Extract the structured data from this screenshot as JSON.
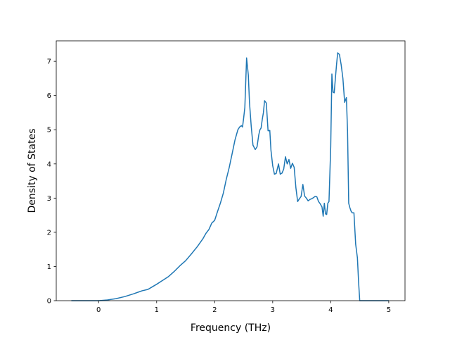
{
  "chart_data": {
    "type": "line",
    "title": "",
    "xlabel": "Frequency (THz)",
    "ylabel": "Density of States",
    "xlim": [
      -0.73,
      5.28
    ],
    "ylim": [
      0,
      7.6
    ],
    "xticks": [
      0,
      1,
      2,
      3,
      4,
      5
    ],
    "yticks": [
      0,
      1,
      2,
      3,
      4,
      5,
      6,
      7
    ],
    "grid": false,
    "legend": "none",
    "series": [
      {
        "color": "#1f77b4",
        "x": [
          -0.47,
          -0.2,
          0.0,
          0.15,
          0.3,
          0.45,
          0.6,
          0.7,
          0.75,
          0.85,
          0.9,
          1.0,
          1.1,
          1.2,
          1.3,
          1.4,
          1.5,
          1.6,
          1.7,
          1.8,
          1.85,
          1.9,
          1.95,
          2.0,
          2.05,
          2.1,
          2.15,
          2.2,
          2.25,
          2.3,
          2.35,
          2.4,
          2.43,
          2.46,
          2.48,
          2.5,
          2.52,
          2.55,
          2.58,
          2.6,
          2.63,
          2.66,
          2.7,
          2.73,
          2.76,
          2.78,
          2.8,
          2.82,
          2.84,
          2.86,
          2.89,
          2.92,
          2.95,
          2.97,
          3.0,
          3.03,
          3.06,
          3.1,
          3.13,
          3.16,
          3.19,
          3.22,
          3.25,
          3.28,
          3.31,
          3.34,
          3.37,
          3.4,
          3.43,
          3.46,
          3.49,
          3.52,
          3.55,
          3.58,
          3.61,
          3.64,
          3.67,
          3.7,
          3.73,
          3.76,
          3.79,
          3.82,
          3.85,
          3.87,
          3.89,
          3.91,
          3.93,
          3.95,
          3.97,
          4.0,
          4.02,
          4.04,
          4.06,
          4.08,
          4.1,
          4.12,
          4.15,
          4.18,
          4.21,
          4.24,
          4.27,
          4.29,
          4.31,
          4.33,
          4.35,
          4.37,
          4.4,
          4.43,
          4.46,
          4.48,
          4.5,
          4.52,
          4.54,
          4.56,
          4.58,
          4.75,
          5.0
        ],
        "y": [
          0.0,
          0.0,
          0.0,
          0.02,
          0.06,
          0.12,
          0.2,
          0.26,
          0.29,
          0.33,
          0.38,
          0.48,
          0.59,
          0.7,
          0.85,
          1.02,
          1.17,
          1.37,
          1.58,
          1.82,
          1.97,
          2.08,
          2.27,
          2.35,
          2.61,
          2.86,
          3.15,
          3.55,
          3.89,
          4.29,
          4.7,
          5.0,
          5.08,
          5.12,
          5.08,
          5.35,
          5.65,
          7.1,
          6.6,
          5.8,
          5.1,
          4.55,
          4.42,
          4.5,
          4.85,
          5.0,
          5.05,
          5.3,
          5.5,
          5.85,
          5.78,
          4.97,
          4.98,
          4.4,
          3.95,
          3.7,
          3.72,
          4.0,
          3.7,
          3.73,
          3.85,
          4.21,
          4.0,
          4.13,
          3.87,
          4.02,
          3.9,
          3.3,
          2.9,
          2.98,
          3.05,
          3.4,
          3.06,
          3.0,
          2.92,
          2.96,
          2.98,
          3.01,
          3.05,
          3.04,
          2.9,
          2.83,
          2.74,
          2.47,
          2.85,
          2.54,
          2.52,
          2.85,
          2.9,
          4.5,
          6.63,
          6.1,
          6.08,
          6.5,
          6.9,
          7.25,
          7.2,
          6.9,
          6.5,
          5.8,
          5.94,
          4.95,
          2.85,
          2.72,
          2.62,
          2.57,
          2.57,
          1.65,
          1.25,
          0.55,
          0.0,
          0.0,
          0.0,
          0.0,
          0.0,
          0.0,
          0.0
        ]
      }
    ]
  }
}
